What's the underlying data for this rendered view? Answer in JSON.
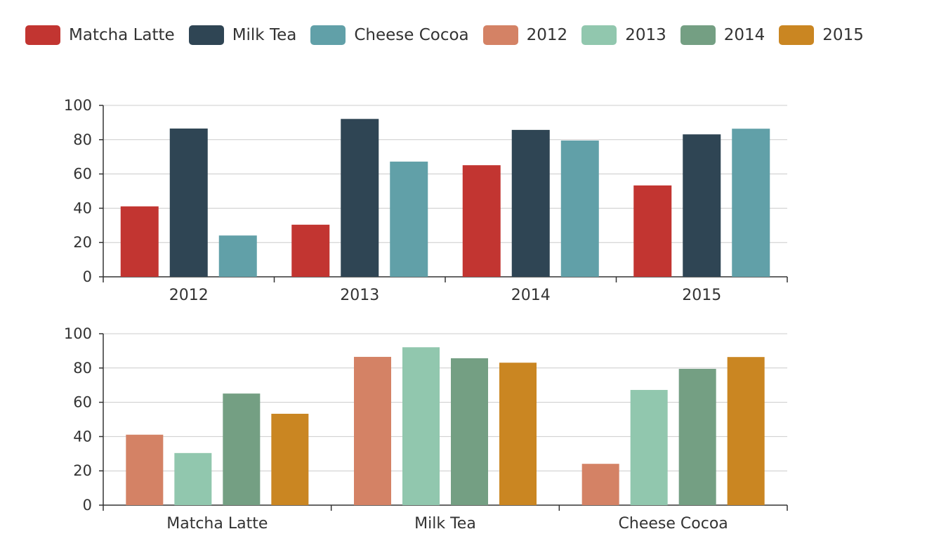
{
  "legend": [
    {
      "name": "Matcha Latte",
      "color": "#c23531"
    },
    {
      "name": "Milk Tea",
      "color": "#2f4554"
    },
    {
      "name": "Cheese Cocoa",
      "color": "#61a0a8"
    },
    {
      "name": "2012",
      "color": "#d48265"
    },
    {
      "name": "2013",
      "color": "#91c7ae"
    },
    {
      "name": "2014",
      "color": "#749f83"
    },
    {
      "name": "2015",
      "color": "#ca8622"
    }
  ],
  "chart_data": [
    {
      "type": "bar",
      "categories": [
        "2012",
        "2013",
        "2014",
        "2015"
      ],
      "series": [
        {
          "name": "Matcha Latte",
          "color": "#c23531",
          "values": [
            41.1,
            30.4,
            65.1,
            53.3
          ]
        },
        {
          "name": "Milk Tea",
          "color": "#2f4554",
          "values": [
            86.5,
            92.1,
            85.7,
            83.1
          ]
        },
        {
          "name": "Cheese Cocoa",
          "color": "#61a0a8",
          "values": [
            24.1,
            67.2,
            79.5,
            86.4
          ]
        }
      ],
      "ylim": [
        0,
        100
      ],
      "yticks": [
        "0",
        "20",
        "40",
        "60",
        "80",
        "100"
      ],
      "grid": true,
      "legend_position": "top-left"
    },
    {
      "type": "bar",
      "categories": [
        "Matcha Latte",
        "Milk Tea",
        "Cheese Cocoa"
      ],
      "series": [
        {
          "name": "2012",
          "color": "#d48265",
          "values": [
            41.1,
            86.5,
            24.1
          ]
        },
        {
          "name": "2013",
          "color": "#91c7ae",
          "values": [
            30.4,
            92.1,
            67.2
          ]
        },
        {
          "name": "2014",
          "color": "#749f83",
          "values": [
            65.1,
            85.7,
            79.5
          ]
        },
        {
          "name": "2015",
          "color": "#ca8622",
          "values": [
            53.3,
            83.1,
            86.4
          ]
        }
      ],
      "ylim": [
        0,
        100
      ],
      "yticks": [
        "0",
        "20",
        "40",
        "60",
        "80",
        "100"
      ],
      "grid": true,
      "legend_position": "top-left"
    }
  ]
}
